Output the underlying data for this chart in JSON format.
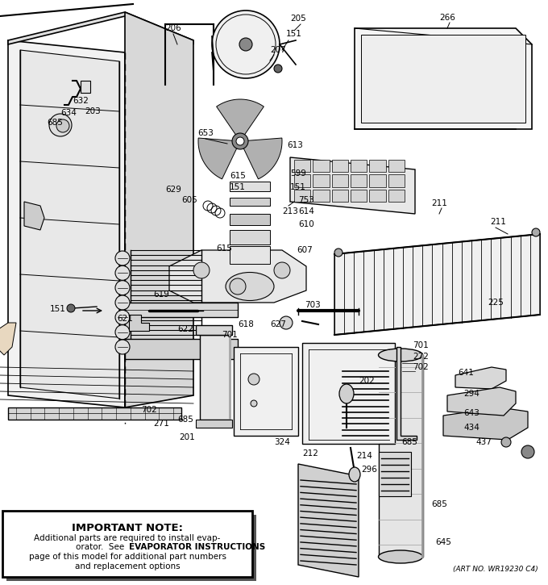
{
  "bg_color": "#ffffff",
  "line_color": "#000000",
  "note_box": {
    "title": "IMPORTANT NOTE:",
    "line1": "Additional parts are required to install evap-",
    "line2a": "orator.  See ",
    "line2b": "EVAPORATOR INSTRUCTIONS",
    "line3": "page of this model for additional part numbers",
    "line4": "and replacement options"
  },
  "art_no": "(ART NO. WR19230 C4)"
}
